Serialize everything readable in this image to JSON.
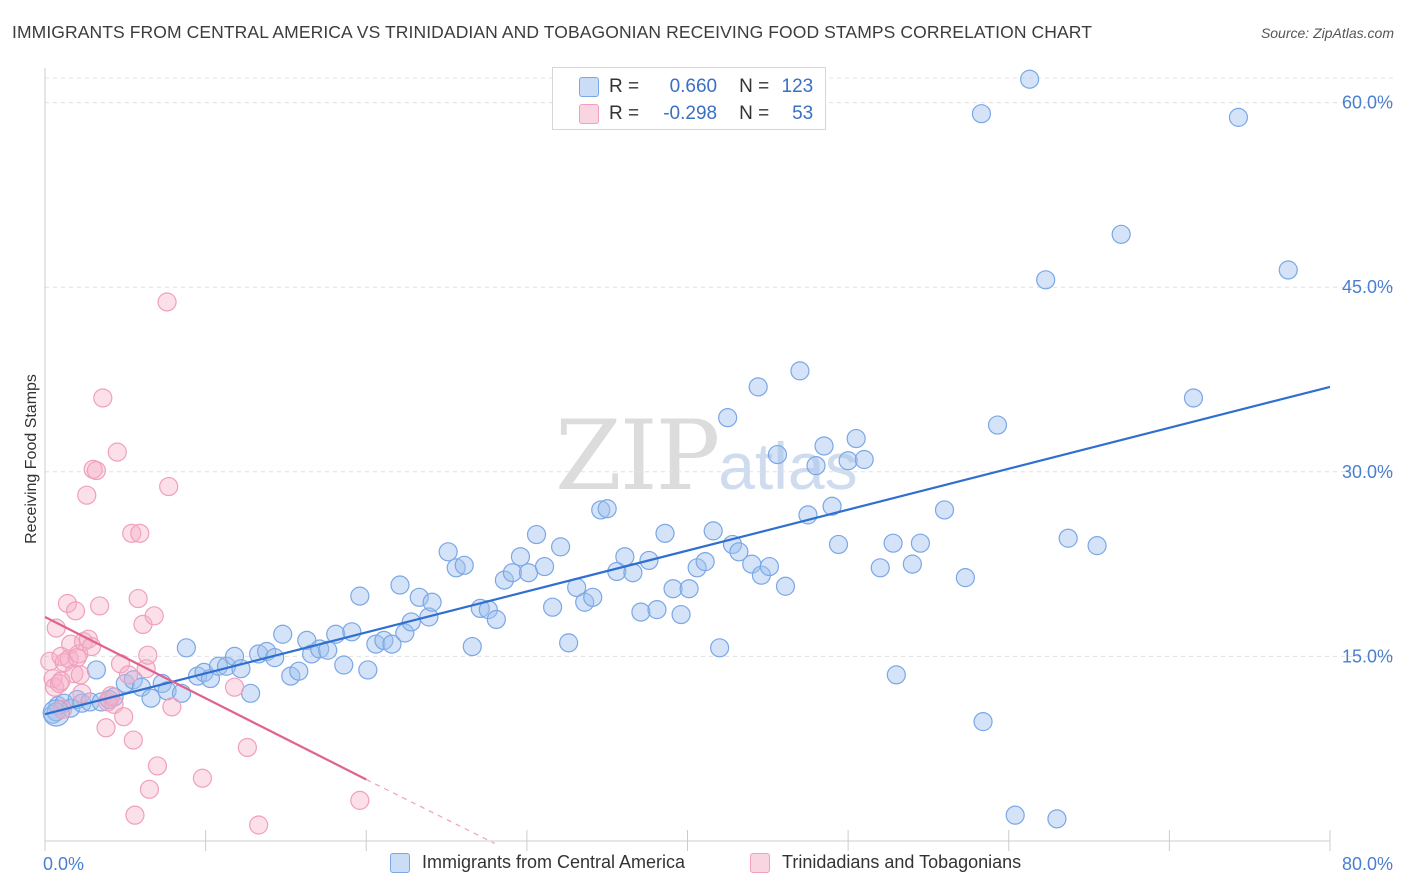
{
  "header": {
    "title": "IMMIGRANTS FROM CENTRAL AMERICA VS TRINIDADIAN AND TOBAGONIAN RECEIVING FOOD STAMPS CORRELATION CHART",
    "source": "Source: ZipAtlas.com"
  },
  "watermark": {
    "zip": "ZIP",
    "atlas": "atlas"
  },
  "legend_box": {
    "rows": [
      {
        "r_label": "R =",
        "r_value": "0.660",
        "n_label": "N =",
        "n_value": "123",
        "color": "#7ba7e6"
      },
      {
        "r_label": "R =",
        "r_value": "-0.298",
        "n_label": "N =",
        "n_value": "53",
        "color": "#f0a0bb"
      }
    ]
  },
  "chart_data": {
    "type": "scatter",
    "title": "IMMIGRANTS FROM CENTRAL AMERICA VS TRINIDADIAN AND TOBAGONIAN RECEIVING FOOD STAMPS CORRELATION CHART",
    "xlabel": "",
    "ylabel": "Receiving Food Stamps",
    "xlim": [
      0,
      80
    ],
    "ylim": [
      0,
      62
    ],
    "x_tick_labels": [
      "0.0%",
      "80.0%"
    ],
    "y_ticks": [
      15,
      30,
      45,
      60
    ],
    "y_tick_labels": [
      "15.0%",
      "30.0%",
      "45.0%",
      "60.0%"
    ],
    "grid": true,
    "legend_placement": "top-center",
    "series": [
      {
        "name": "Immigrants from Central America",
        "color": "#7ba7e6",
        "trend": {
          "x": [
            0,
            80
          ],
          "y": [
            10.3,
            36.9
          ]
        },
        "points": [
          [
            0.5,
            10.3
          ],
          [
            0.8,
            11.0
          ],
          [
            1.2,
            11.2
          ],
          [
            1.6,
            10.8
          ],
          [
            2.0,
            11.5
          ],
          [
            2.3,
            11.2
          ],
          [
            2.8,
            11.3
          ],
          [
            3.2,
            13.9
          ],
          [
            3.5,
            11.3
          ],
          [
            4.0,
            11.5
          ],
          [
            4.3,
            11.7
          ],
          [
            5.0,
            12.8
          ],
          [
            5.5,
            13.1
          ],
          [
            6.0,
            12.5
          ],
          [
            6.6,
            11.6
          ],
          [
            7.3,
            12.8
          ],
          [
            7.6,
            12.2
          ],
          [
            8.5,
            12.0
          ],
          [
            8.8,
            15.7
          ],
          [
            9.5,
            13.4
          ],
          [
            9.9,
            13.7
          ],
          [
            10.3,
            13.2
          ],
          [
            10.8,
            14.2
          ],
          [
            11.3,
            14.2
          ],
          [
            11.8,
            15.0
          ],
          [
            12.2,
            14.0
          ],
          [
            12.8,
            12.0
          ],
          [
            13.3,
            15.2
          ],
          [
            13.8,
            15.4
          ],
          [
            14.3,
            14.9
          ],
          [
            14.8,
            16.8
          ],
          [
            15.3,
            13.4
          ],
          [
            15.8,
            13.8
          ],
          [
            16.3,
            16.3
          ],
          [
            16.6,
            15.2
          ],
          [
            17.1,
            15.6
          ],
          [
            17.6,
            15.5
          ],
          [
            18.1,
            16.8
          ],
          [
            18.6,
            14.3
          ],
          [
            19.1,
            17.0
          ],
          [
            19.6,
            19.9
          ],
          [
            20.1,
            13.9
          ],
          [
            20.6,
            16.0
          ],
          [
            21.1,
            16.3
          ],
          [
            21.6,
            16.0
          ],
          [
            22.1,
            20.8
          ],
          [
            22.4,
            16.9
          ],
          [
            22.8,
            17.8
          ],
          [
            23.3,
            19.8
          ],
          [
            23.9,
            18.2
          ],
          [
            24.1,
            19.4
          ],
          [
            25.1,
            23.5
          ],
          [
            25.6,
            22.2
          ],
          [
            26.1,
            22.4
          ],
          [
            26.6,
            15.8
          ],
          [
            27.1,
            18.9
          ],
          [
            27.6,
            18.8
          ],
          [
            28.1,
            18.0
          ],
          [
            28.6,
            21.2
          ],
          [
            29.1,
            21.8
          ],
          [
            29.6,
            23.1
          ],
          [
            30.1,
            21.8
          ],
          [
            30.6,
            24.9
          ],
          [
            31.1,
            22.3
          ],
          [
            31.6,
            19.0
          ],
          [
            32.1,
            23.9
          ],
          [
            32.6,
            16.1
          ],
          [
            33.1,
            20.6
          ],
          [
            33.6,
            19.4
          ],
          [
            34.1,
            19.8
          ],
          [
            34.6,
            26.9
          ],
          [
            35.0,
            27.0
          ],
          [
            35.6,
            21.9
          ],
          [
            36.1,
            23.1
          ],
          [
            36.6,
            21.8
          ],
          [
            37.1,
            18.6
          ],
          [
            37.6,
            22.8
          ],
          [
            38.1,
            18.8
          ],
          [
            38.6,
            25.0
          ],
          [
            39.1,
            20.5
          ],
          [
            39.6,
            18.4
          ],
          [
            40.1,
            20.5
          ],
          [
            40.6,
            22.2
          ],
          [
            41.1,
            22.7
          ],
          [
            41.6,
            25.2
          ],
          [
            42.0,
            15.7
          ],
          [
            42.5,
            34.4
          ],
          [
            42.8,
            24.1
          ],
          [
            43.2,
            23.5
          ],
          [
            44.0,
            22.5
          ],
          [
            44.4,
            36.9
          ],
          [
            44.6,
            21.6
          ],
          [
            45.1,
            22.3
          ],
          [
            45.6,
            31.4
          ],
          [
            46.1,
            20.7
          ],
          [
            47.0,
            38.2
          ],
          [
            47.5,
            26.5
          ],
          [
            48.0,
            30.5
          ],
          [
            48.5,
            32.1
          ],
          [
            49.0,
            27.2
          ],
          [
            49.4,
            24.1
          ],
          [
            50.0,
            30.9
          ],
          [
            50.5,
            32.7
          ],
          [
            51.0,
            31.0
          ],
          [
            52.0,
            22.2
          ],
          [
            52.8,
            24.2
          ],
          [
            53.0,
            13.5
          ],
          [
            54.0,
            22.5
          ],
          [
            54.5,
            24.2
          ],
          [
            56.0,
            26.9
          ],
          [
            57.3,
            21.4
          ],
          [
            58.3,
            59.1
          ],
          [
            58.4,
            9.7
          ],
          [
            59.3,
            33.8
          ],
          [
            60.4,
            2.1
          ],
          [
            61.3,
            61.9
          ],
          [
            62.3,
            45.6
          ],
          [
            63.0,
            1.8
          ],
          [
            63.7,
            24.6
          ],
          [
            65.5,
            24.0
          ],
          [
            67.0,
            49.3
          ],
          [
            71.5,
            36.0
          ],
          [
            74.3,
            58.8
          ],
          [
            77.4,
            46.4
          ],
          [
            0.7,
            10.5
          ]
        ]
      },
      {
        "name": "Trinidadians and Tobagonians",
        "color": "#f0a0bb",
        "trend": {
          "x": [
            0,
            20
          ],
          "y": [
            18.2,
            5.0
          ]
        },
        "trend_dashed": {
          "x": [
            20,
            28
          ],
          "y": [
            5.0,
            -0.2
          ]
        },
        "points": [
          [
            0.3,
            14.6
          ],
          [
            0.5,
            13.2
          ],
          [
            0.6,
            12.5
          ],
          [
            0.7,
            17.3
          ],
          [
            0.9,
            12.8
          ],
          [
            1.0,
            15.0
          ],
          [
            1.1,
            10.7
          ],
          [
            1.2,
            14.5
          ],
          [
            1.4,
            19.3
          ],
          [
            1.5,
            14.8
          ],
          [
            1.6,
            16.0
          ],
          [
            1.8,
            13.6
          ],
          [
            1.9,
            18.7
          ],
          [
            2.0,
            14.9
          ],
          [
            2.1,
            15.2
          ],
          [
            2.2,
            13.5
          ],
          [
            2.4,
            16.2
          ],
          [
            2.6,
            28.1
          ],
          [
            2.7,
            16.4
          ],
          [
            2.9,
            15.8
          ],
          [
            3.0,
            30.2
          ],
          [
            3.2,
            30.1
          ],
          [
            3.4,
            19.1
          ],
          [
            3.6,
            36.0
          ],
          [
            3.8,
            9.2
          ],
          [
            3.9,
            11.3
          ],
          [
            4.1,
            11.8
          ],
          [
            4.3,
            11.1
          ],
          [
            4.5,
            31.6
          ],
          [
            4.7,
            14.4
          ],
          [
            4.9,
            10.1
          ],
          [
            5.2,
            13.5
          ],
          [
            5.4,
            25.0
          ],
          [
            5.5,
            8.2
          ],
          [
            5.6,
            2.1
          ],
          [
            5.8,
            19.7
          ],
          [
            5.9,
            25.0
          ],
          [
            6.1,
            17.6
          ],
          [
            6.3,
            14.0
          ],
          [
            6.4,
            15.1
          ],
          [
            6.5,
            4.2
          ],
          [
            6.8,
            18.3
          ],
          [
            7.0,
            6.1
          ],
          [
            7.6,
            43.8
          ],
          [
            7.7,
            28.8
          ],
          [
            7.9,
            10.9
          ],
          [
            9.8,
            5.1
          ],
          [
            11.8,
            12.5
          ],
          [
            12.6,
            7.6
          ],
          [
            13.3,
            1.3
          ],
          [
            19.6,
            3.3
          ],
          [
            1.0,
            13.0
          ],
          [
            2.3,
            12.0
          ]
        ]
      }
    ]
  }
}
